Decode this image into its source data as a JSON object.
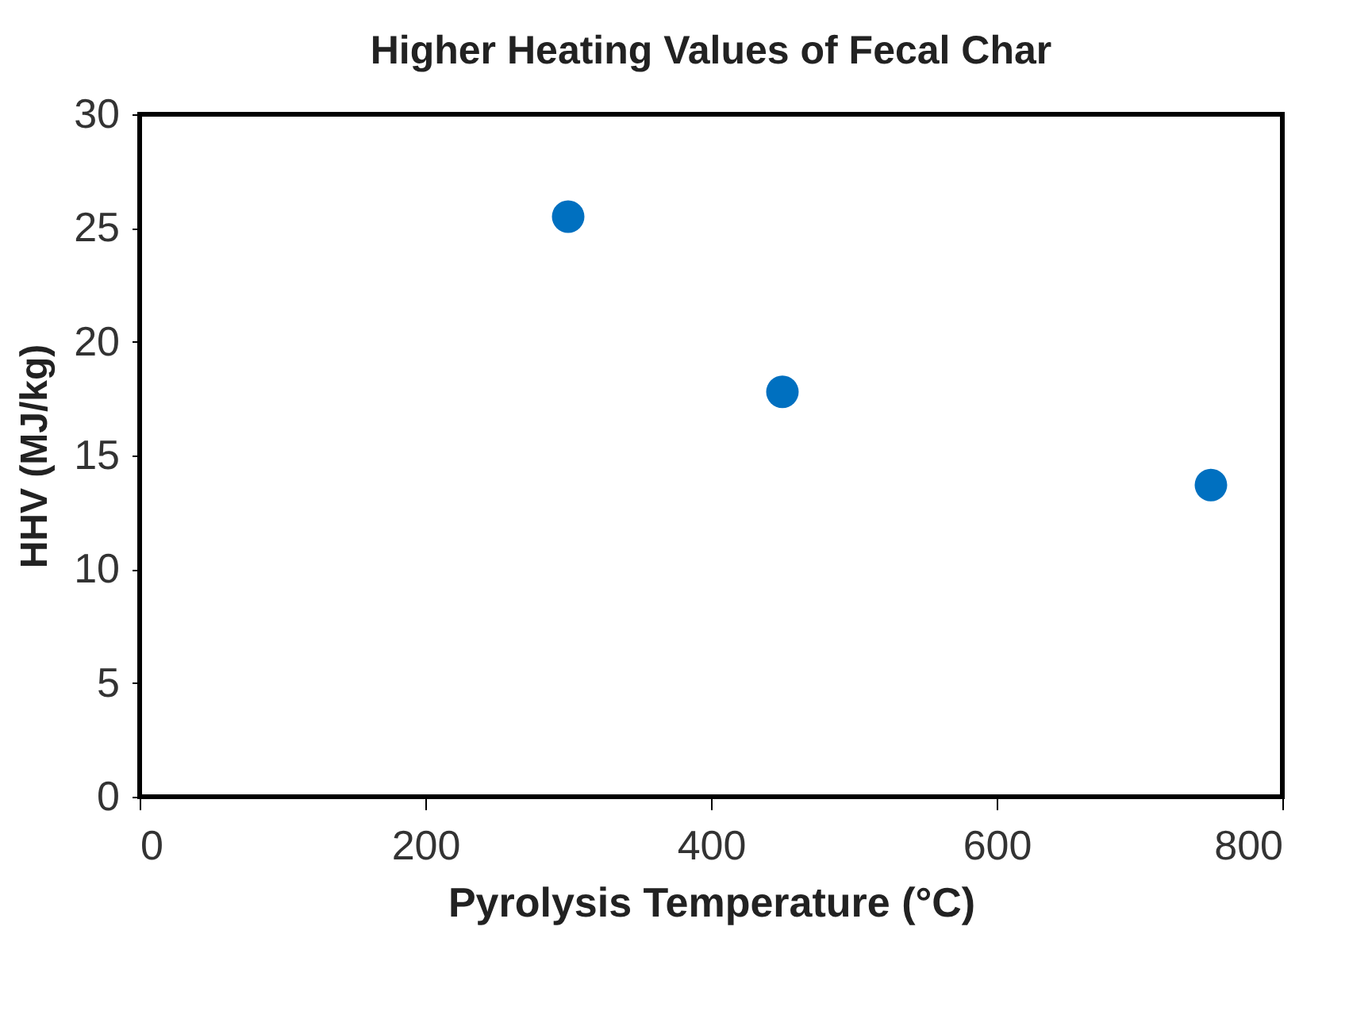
{
  "chart_data": {
    "type": "scatter",
    "title": "Higher Heating Values of Fecal Char",
    "xlabel": "Pyrolysis Temperature (°C)",
    "ylabel": "HHV (MJ/kg)",
    "x": [
      300,
      450,
      750
    ],
    "series": [
      {
        "color": "#0070c0",
        "values": [
          25.5,
          17.8,
          13.7
        ]
      }
    ],
    "xlim": [
      0,
      800
    ],
    "xticks": [
      0,
      200,
      400,
      600,
      800
    ],
    "ylim": [
      0,
      30
    ],
    "yticks": [
      0,
      5,
      10,
      15,
      20,
      25,
      30
    ],
    "grid": false,
    "legend": false,
    "marker": "circle"
  }
}
